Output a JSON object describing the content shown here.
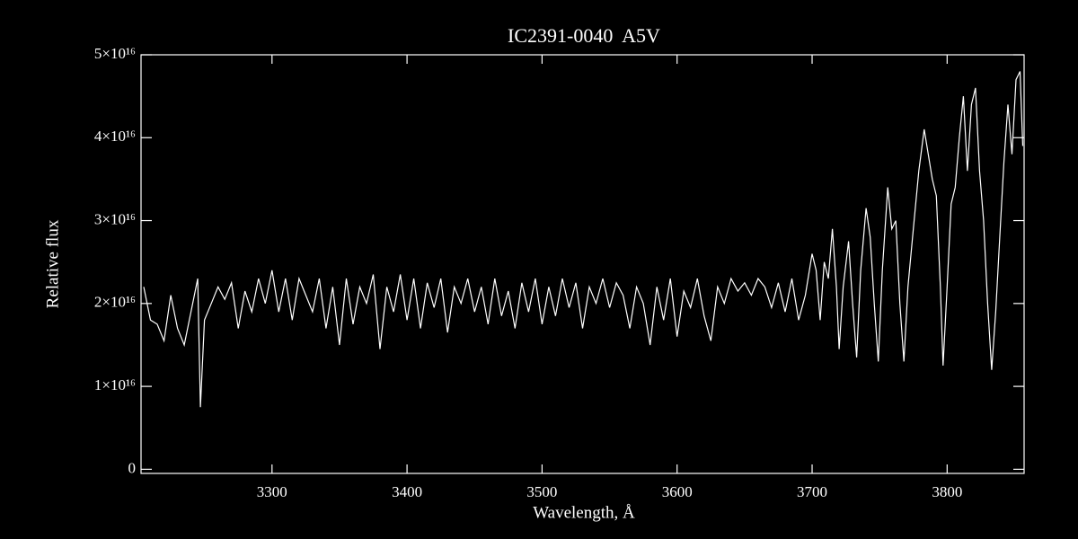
{
  "chart_data": {
    "type": "line",
    "title": "IC2391-0040  A5V",
    "x_label": "Wavelength, Å",
    "y_label": "Relative flux",
    "color": "#ffffff",
    "x": [
      3205,
      3210,
      3215,
      3220,
      3225,
      3230,
      3235,
      3240,
      3245,
      3247,
      3250,
      3255,
      3260,
      3265,
      3270,
      3275,
      3280,
      3285,
      3290,
      3295,
      3300,
      3305,
      3310,
      3315,
      3320,
      3325,
      3330,
      3335,
      3340,
      3345,
      3350,
      3355,
      3360,
      3365,
      3370,
      3375,
      3380,
      3385,
      3390,
      3395,
      3400,
      3405,
      3410,
      3415,
      3420,
      3425,
      3430,
      3435,
      3440,
      3445,
      3450,
      3455,
      3460,
      3465,
      3470,
      3475,
      3480,
      3485,
      3490,
      3495,
      3500,
      3505,
      3510,
      3515,
      3520,
      3525,
      3530,
      3535,
      3540,
      3545,
      3550,
      3555,
      3560,
      3565,
      3570,
      3575,
      3580,
      3585,
      3590,
      3595,
      3600,
      3605,
      3610,
      3615,
      3620,
      3625,
      3630,
      3635,
      3640,
      3645,
      3650,
      3655,
      3660,
      3665,
      3670,
      3675,
      3680,
      3685,
      3690,
      3695,
      3700,
      3703,
      3706,
      3709,
      3712,
      3715,
      3718,
      3720,
      3723,
      3727,
      3730,
      3733,
      3736,
      3740,
      3743,
      3746,
      3749,
      3752,
      3756,
      3759,
      3762,
      3765,
      3768,
      3771,
      3775,
      3779,
      3783,
      3786,
      3789,
      3792,
      3795,
      3797,
      3800,
      3803,
      3806,
      3809,
      3812,
      3815,
      3818,
      3821,
      3824,
      3827,
      3830,
      3833,
      3836,
      3839,
      3842,
      3845,
      3848,
      3851,
      3854,
      3856
    ],
    "values": [
      2.2e+16,
      1.8e+16,
      1.75e+16,
      1.55e+16,
      2.1e+16,
      1.7e+16,
      1.5e+16,
      1.9e+16,
      2.3e+16,
      7500000000000000.0,
      1.8e+16,
      2e+16,
      2.2e+16,
      2.05e+16,
      2.25e+16,
      1.7e+16,
      2.15e+16,
      1.9e+16,
      2.3e+16,
      2e+16,
      2.4e+16,
      1.9e+16,
      2.3e+16,
      1.8e+16,
      2.3e+16,
      2.1e+16,
      1.9e+16,
      2.3e+16,
      1.7e+16,
      2.2e+16,
      1.5e+16,
      2.3e+16,
      1.75e+16,
      2.2e+16,
      2e+16,
      2.35e+16,
      1.45e+16,
      2.2e+16,
      1.9e+16,
      2.35e+16,
      1.8e+16,
      2.3e+16,
      1.7e+16,
      2.25e+16,
      1.95e+16,
      2.3e+16,
      1.65e+16,
      2.2e+16,
      2e+16,
      2.3e+16,
      1.9e+16,
      2.2e+16,
      1.75e+16,
      2.3e+16,
      1.85e+16,
      2.15e+16,
      1.7e+16,
      2.25e+16,
      1.9e+16,
      2.3e+16,
      1.75e+16,
      2.2e+16,
      1.85e+16,
      2.3e+16,
      1.95e+16,
      2.25e+16,
      1.7e+16,
      2.2e+16,
      2e+16,
      2.3e+16,
      1.95e+16,
      2.25e+16,
      2.1e+16,
      1.7e+16,
      2.2e+16,
      2e+16,
      1.5e+16,
      2.2e+16,
      1.8e+16,
      2.3e+16,
      1.6e+16,
      2.15e+16,
      1.95e+16,
      2.3e+16,
      1.85e+16,
      1.55e+16,
      2.2e+16,
      2e+16,
      2.3e+16,
      2.15e+16,
      2.25e+16,
      2.1e+16,
      2.3e+16,
      2.2e+16,
      1.95e+16,
      2.25e+16,
      1.9e+16,
      2.3e+16,
      1.8e+16,
      2.1e+16,
      2.6e+16,
      2.4e+16,
      1.8e+16,
      2.5e+16,
      2.3e+16,
      2.9e+16,
      2.2e+16,
      1.45e+16,
      2.2e+16,
      2.75e+16,
      2e+16,
      1.35e+16,
      2.4e+16,
      3.15e+16,
      2.8e+16,
      2e+16,
      1.3e+16,
      2.4e+16,
      3.4e+16,
      2.9e+16,
      3e+16,
      2e+16,
      1.3e+16,
      2.2e+16,
      2.9e+16,
      3.6e+16,
      4.1e+16,
      3.8e+16,
      3.5e+16,
      3.3e+16,
      2.2e+16,
      1.25e+16,
      2.2e+16,
      3.2e+16,
      3.4e+16,
      4e+16,
      4.5e+16,
      3.6e+16,
      4.4e+16,
      4.6e+16,
      3.6e+16,
      3e+16,
      2e+16,
      1.2e+16,
      1.9e+16,
      2.8e+16,
      3.7e+16,
      4.4e+16,
      3.8e+16,
      4.7e+16,
      4.8e+16,
      3.9e+16
    ],
    "xlim": [
      3203,
      3857
    ],
    "xticks": [
      3300,
      3400,
      3500,
      3600,
      3700,
      3800
    ],
    "ylim": [
      -500000000000000.0,
      5e+16
    ],
    "yticks": [
      0,
      {
        "value": 1e+16,
        "label": "1×10¹⁶"
      },
      {
        "value": 2e+16,
        "label": "2×10¹⁶"
      },
      {
        "value": 3e+16,
        "label": "3×10¹⁶"
      },
      {
        "value": 4e+16,
        "label": "4×10¹⁶"
      },
      {
        "value": 5e+16,
        "label": "5×10¹⁶"
      }
    ]
  }
}
